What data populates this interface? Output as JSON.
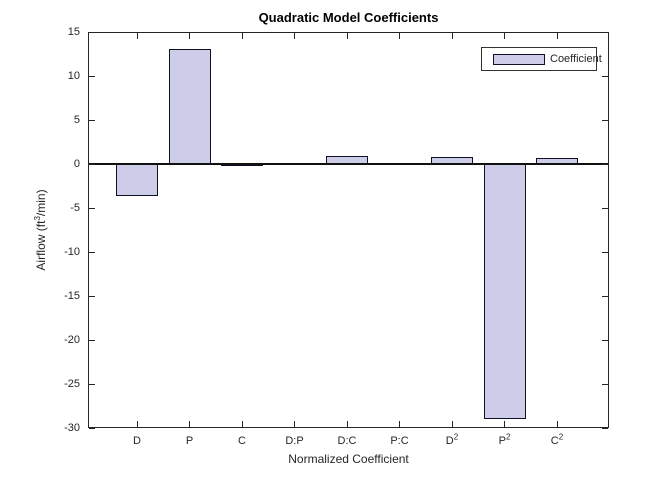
{
  "chart_data": {
    "type": "bar",
    "title": "Quadratic Model Coefficients",
    "xlabel": "Normalized Coefficient",
    "ylabel": "Airflow (ft³/min)",
    "ylabel_parts": {
      "pre": "Airflow (ft",
      "sup": "3",
      "post": "/min)"
    },
    "categories": [
      {
        "base": "D",
        "sup": ""
      },
      {
        "base": "P",
        "sup": ""
      },
      {
        "base": "C",
        "sup": ""
      },
      {
        "base": "D:P",
        "sup": ""
      },
      {
        "base": "D:C",
        "sup": ""
      },
      {
        "base": "P:C",
        "sup": ""
      },
      {
        "base": "D",
        "sup": "2"
      },
      {
        "base": "P",
        "sup": "2"
      },
      {
        "base": "C",
        "sup": "2"
      }
    ],
    "values": [
      -3.6,
      13.1,
      -0.2,
      0,
      0.9,
      0,
      0.75,
      -29.0,
      0.7
    ],
    "yticks": [
      15,
      10,
      5,
      0,
      -5,
      -10,
      -15,
      -20,
      -25,
      -30
    ],
    "ylim": [
      -30,
      15
    ],
    "series": [
      {
        "name": "Coefficient",
        "values": [
          -3.6,
          13.1,
          -0.2,
          0,
          0.9,
          0,
          0.75,
          -29.0,
          0.7
        ]
      }
    ],
    "legend": "Coefficient",
    "legend_position": "northeast",
    "grid": false,
    "baseline_value": 0,
    "colors": {
      "bar_fill": "#cdcde8",
      "bar_edge": "#10102a",
      "axis": "#262626",
      "text": "#262626",
      "title": "#000000"
    }
  }
}
